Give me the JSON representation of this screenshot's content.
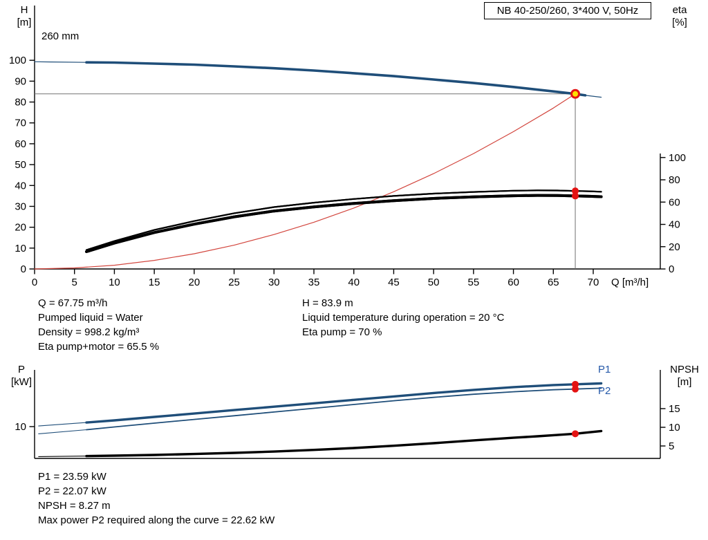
{
  "title_box": {
    "label": "NB 40-250/260, 3*400 V, 50Hz"
  },
  "colors": {
    "curve_blue": "#1f4e79",
    "eta_black": "#000000",
    "system_red": "#d2443c",
    "marker_red": "#e41313",
    "duty_fill": "#ffdf00",
    "crosshair_gray": "#707070",
    "label_blue": "#2458a8"
  },
  "chart_data": [
    {
      "type": "line",
      "name": "qh-eta-chart",
      "left_axis": {
        "title": "H",
        "unit": "[m]",
        "min": 0,
        "max": 100,
        "ticks": [
          0,
          10,
          20,
          30,
          40,
          50,
          60,
          70,
          80,
          90,
          100
        ]
      },
      "right_axis": {
        "title": "eta",
        "unit": "[%]",
        "min": 0,
        "max": 100,
        "ticks": [
          0,
          20,
          40,
          60,
          80,
          100
        ]
      },
      "x_axis": {
        "label": "Q [m³/h]",
        "min": 0,
        "max": 70,
        "ticks": [
          0,
          5,
          10,
          15,
          20,
          25,
          30,
          35,
          40,
          45,
          50,
          55,
          60,
          65,
          70
        ]
      },
      "curve_label": "260 mm",
      "crosshair": {
        "q": 67.75,
        "h": 83.9
      },
      "series": [
        {
          "id": "system-curve",
          "axis": "h",
          "color": "#d2443c",
          "width_thin": 1.2,
          "points": [
            [
              0,
              0
            ],
            [
              5,
              0.5
            ],
            [
              10,
              1.8
            ],
            [
              15,
              4.1
            ],
            [
              20,
              7.3
            ],
            [
              25,
              11.4
            ],
            [
              30,
              16.5
            ],
            [
              35,
              22.4
            ],
            [
              40,
              29.2
            ],
            [
              45,
              37.0
            ],
            [
              50,
              45.7
            ],
            [
              55,
              55.3
            ],
            [
              60,
              65.8
            ],
            [
              65,
              77.1
            ],
            [
              67.75,
              83.9
            ]
          ]
        },
        {
          "id": "qh-260mm",
          "axis": "h",
          "color": "#1f4e79",
          "width_thin": 1.2,
          "width_thick": 3.6,
          "thick_range": [
            6.5,
            69
          ],
          "points": [
            [
              0,
              99.3
            ],
            [
              2,
              99.2
            ],
            [
              6.5,
              99.0
            ],
            [
              10,
              98.9
            ],
            [
              15,
              98.4
            ],
            [
              20,
              97.9
            ],
            [
              25,
              97.1
            ],
            [
              30,
              96.2
            ],
            [
              35,
              95.1
            ],
            [
              40,
              93.8
            ],
            [
              45,
              92.4
            ],
            [
              50,
              90.8
            ],
            [
              55,
              89.1
            ],
            [
              60,
              87.2
            ],
            [
              65,
              85.1
            ],
            [
              67.75,
              83.9
            ],
            [
              69,
              83.2
            ],
            [
              71,
              82.3
            ]
          ]
        },
        {
          "id": "eta-pump",
          "axis": "eta",
          "color": "#000000",
          "width_thin": 2.2,
          "width_thick": 2.2,
          "thick_range": [
            6.5,
            71
          ],
          "points": [
            [
              6.5,
              17
            ],
            [
              10,
              25
            ],
            [
              15,
              35
            ],
            [
              20,
              43
            ],
            [
              25,
              50
            ],
            [
              30,
              55.5
            ],
            [
              35,
              59.5
            ],
            [
              40,
              62.8
            ],
            [
              45,
              65.5
            ],
            [
              50,
              67.6
            ],
            [
              55,
              69.1
            ],
            [
              60,
              70.2
            ],
            [
              63,
              70.5
            ],
            [
              65.5,
              70.4
            ],
            [
              67.75,
              70
            ],
            [
              69.5,
              69.7
            ],
            [
              71,
              69.3
            ]
          ]
        },
        {
          "id": "eta-pump-motor",
          "axis": "eta",
          "color": "#000000",
          "width_thin": 4,
          "width_thick": 4,
          "thick_range": [
            6.5,
            71
          ],
          "points": [
            [
              6.5,
              15.5
            ],
            [
              10,
              23.2
            ],
            [
              15,
              32.7
            ],
            [
              20,
              40.2
            ],
            [
              25,
              46.8
            ],
            [
              30,
              52.0
            ],
            [
              35,
              55.7
            ],
            [
              40,
              58.8
            ],
            [
              45,
              61.3
            ],
            [
              50,
              63.3
            ],
            [
              55,
              64.7
            ],
            [
              60,
              65.7
            ],
            [
              63,
              66.0
            ],
            [
              65.5,
              65.9
            ],
            [
              67.75,
              65.5
            ],
            [
              69.5,
              65.2
            ],
            [
              71,
              64.8
            ]
          ]
        }
      ],
      "markers": [
        {
          "style": "dot",
          "axis": "eta",
          "q": 67.75,
          "value": 70
        },
        {
          "style": "dot",
          "axis": "eta",
          "q": 67.75,
          "value": 65.5
        },
        {
          "style": "duty",
          "axis": "h",
          "q": 67.75,
          "value": 83.9
        }
      ]
    },
    {
      "type": "line",
      "name": "power-npsh-chart",
      "left_axis": {
        "title": "P",
        "unit": "[kW]",
        "ticks": [
          10
        ]
      },
      "right_axis": {
        "title": "NPSH",
        "unit": "[m]",
        "ticks": [
          5,
          10,
          15
        ]
      },
      "x_axis": {
        "ticks": []
      },
      "series": [
        {
          "id": "p1",
          "name": "P1",
          "axis": "p",
          "color": "#1f4e79",
          "width_thin": 1.1,
          "width_thick": 3.4,
          "thick_range": [
            6.5,
            71
          ],
          "points": [
            [
              0.5,
              10.2
            ],
            [
              6.5,
              11.3
            ],
            [
              10,
              12.0
            ],
            [
              15,
              13.1
            ],
            [
              20,
              14.2
            ],
            [
              25,
              15.3
            ],
            [
              30,
              16.4
            ],
            [
              35,
              17.5
            ],
            [
              40,
              18.6
            ],
            [
              45,
              19.7
            ],
            [
              50,
              20.8
            ],
            [
              55,
              21.8
            ],
            [
              60,
              22.7
            ],
            [
              65,
              23.35
            ],
            [
              67.75,
              23.59
            ],
            [
              71,
              23.9
            ]
          ]
        },
        {
          "id": "p2",
          "name": "P2",
          "axis": "p",
          "color": "#1f4e79",
          "width_thin": 1.1,
          "width_thick": 1.8,
          "thick_range": [
            6.5,
            71
          ],
          "points": [
            [
              0.5,
              7.7
            ],
            [
              6.5,
              9.0
            ],
            [
              10,
              9.9
            ],
            [
              15,
              11.1
            ],
            [
              20,
              12.3
            ],
            [
              25,
              13.5
            ],
            [
              30,
              14.7
            ],
            [
              35,
              15.9
            ],
            [
              40,
              17.1
            ],
            [
              45,
              18.3
            ],
            [
              50,
              19.4
            ],
            [
              55,
              20.4
            ],
            [
              60,
              21.2
            ],
            [
              65,
              21.85
            ],
            [
              67.75,
              22.07
            ],
            [
              71,
              22.35
            ]
          ]
        },
        {
          "id": "npsh",
          "name": "NPSH",
          "axis": "npsh",
          "color": "#000000",
          "width_thin": 1.1,
          "width_thick": 3.4,
          "thick_range": [
            6.5,
            71
          ],
          "points": [
            [
              0.5,
              2.15
            ],
            [
              6.5,
              2.3
            ],
            [
              10,
              2.4
            ],
            [
              15,
              2.6
            ],
            [
              20,
              2.85
            ],
            [
              25,
              3.15
            ],
            [
              30,
              3.5
            ],
            [
              35,
              3.95
            ],
            [
              40,
              4.45
            ],
            [
              45,
              5.05
            ],
            [
              50,
              5.75
            ],
            [
              55,
              6.5
            ],
            [
              60,
              7.2
            ],
            [
              63,
              7.6
            ],
            [
              65.5,
              7.95
            ],
            [
              67.75,
              8.27
            ],
            [
              69,
              8.55
            ],
            [
              71,
              9.0
            ]
          ]
        }
      ],
      "markers": [
        {
          "style": "dot",
          "axis": "p",
          "q": 67.75,
          "value": 23.59
        },
        {
          "style": "dot",
          "axis": "p",
          "q": 67.75,
          "value": 22.07
        },
        {
          "style": "dot",
          "axis": "npsh",
          "q": 67.75,
          "value": 8.27
        }
      ]
    }
  ],
  "info_panel_top": {
    "left": [
      "Q = 67.75 m³/h",
      "Pumped liquid = Water",
      "Density = 998.2 kg/m³",
      "Eta pump+motor = 65.5 %"
    ],
    "right": [
      "H = 83.9 m",
      "Liquid temperature during operation = 20 °C",
      "Eta pump = 70 %"
    ]
  },
  "info_panel_bottom": [
    "P1 = 23.59 kW",
    "P2 = 22.07 kW",
    "NPSH = 8.27 m",
    "Max power P2 required along the curve = 22.62 kW"
  ]
}
